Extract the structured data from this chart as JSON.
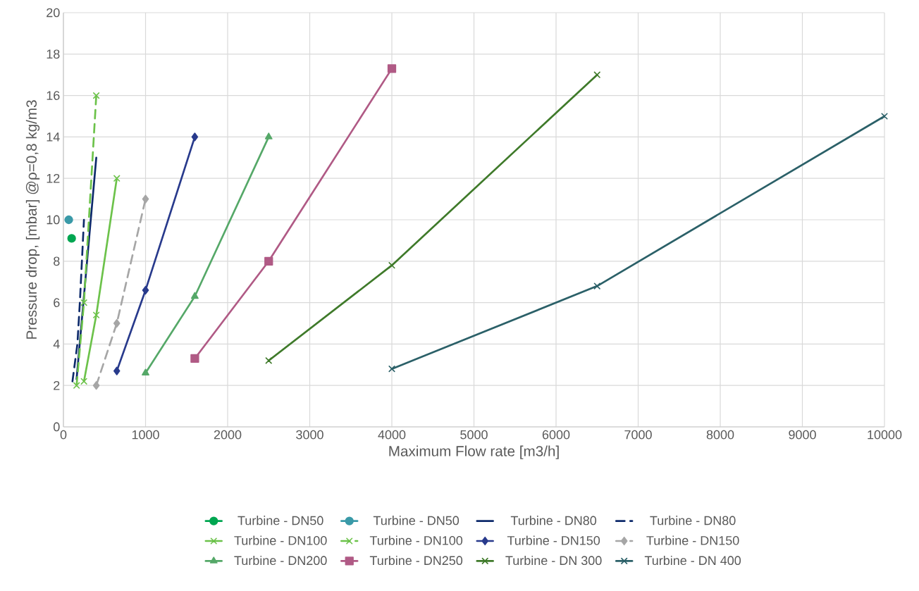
{
  "chart_data": {
    "type": "line",
    "xlabel": "Maximum Flow rate [m3/h]",
    "ylabel": "Pressure drop, [mbar] @ρ=0,8 kg/m3",
    "xlim": [
      0,
      10000
    ],
    "xticks": [
      0,
      1000,
      2000,
      3000,
      4000,
      5000,
      6000,
      7000,
      8000,
      9000,
      10000
    ],
    "ylim": [
      0,
      20
    ],
    "yticks": [
      0,
      2,
      4,
      6,
      8,
      10,
      12,
      14,
      16,
      18,
      20
    ],
    "grid": true,
    "legend": "bottom",
    "series": [
      {
        "name": "Turbine - DN50",
        "color": "#00a651",
        "marker": "circle",
        "line_style": "solid",
        "x": [
          100
        ],
        "values": [
          9.1
        ]
      },
      {
        "name": "Turbine - DN50",
        "color": "#3a9aa8",
        "marker": "circle",
        "line_style": "solid",
        "x": [
          65
        ],
        "values": [
          10
        ]
      },
      {
        "name": "Turbine - DN80",
        "color": "#0d2a6b",
        "marker": "none",
        "line_style": "solid",
        "x": [
          160,
          400
        ],
        "values": [
          2.3,
          13
        ]
      },
      {
        "name": "Turbine - DN80",
        "color": "#0d2a6b",
        "marker": "none",
        "line_style": "dashed",
        "x": [
          110,
          170,
          200,
          250
        ],
        "values": [
          2.2,
          4,
          6,
          10
        ]
      },
      {
        "name": "Turbine - DN100",
        "color": "#6cc24a",
        "marker": "cross",
        "line_style": "solid",
        "x": [
          250,
          400,
          650
        ],
        "values": [
          2.2,
          5.4,
          12
        ]
      },
      {
        "name": "Turbine - DN100",
        "color": "#6cc24a",
        "marker": "cross",
        "line_style": "dashed",
        "x": [
          160,
          250,
          400
        ],
        "values": [
          2,
          6,
          16
        ]
      },
      {
        "name": "Turbine - DN150",
        "color": "#283a8c",
        "marker": "diamond",
        "line_style": "solid",
        "x": [
          650,
          1000,
          1600
        ],
        "values": [
          2.7,
          6.6,
          14
        ]
      },
      {
        "name": "Turbine - DN150",
        "color": "#a6a6a6",
        "marker": "diamond",
        "line_style": "dashed",
        "x": [
          400,
          650,
          1000
        ],
        "values": [
          2,
          5,
          11
        ]
      },
      {
        "name": "Turbine - DN200",
        "color": "#55a868",
        "marker": "triangle",
        "line_style": "solid",
        "x": [
          1000,
          1600,
          2500
        ],
        "values": [
          2.6,
          6.3,
          14
        ]
      },
      {
        "name": "Turbine - DN250",
        "color": "#b05a85",
        "marker": "square",
        "line_style": "solid",
        "x": [
          1600,
          2500,
          4000
        ],
        "values": [
          3.3,
          8,
          17.3
        ]
      },
      {
        "name": "Turbine - DN 300",
        "color": "#3f7a2a",
        "marker": "cross",
        "line_style": "solid",
        "x": [
          2500,
          4000,
          6500
        ],
        "values": [
          3.2,
          7.8,
          17
        ]
      },
      {
        "name": "Turbine - DN 400",
        "color": "#2b6068",
        "marker": "cross",
        "line_style": "solid",
        "x": [
          4000,
          6500,
          10000
        ],
        "values": [
          2.8,
          6.8,
          15
        ]
      }
    ]
  }
}
